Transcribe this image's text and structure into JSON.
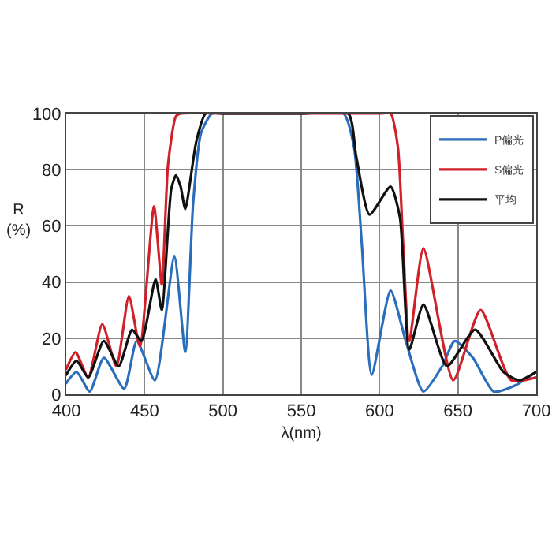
{
  "chart_data": {
    "type": "line",
    "xlabel": "λ(nm)",
    "ylabel": "R\n(%)",
    "xlim": [
      400,
      700
    ],
    "ylim": [
      0,
      100
    ],
    "xticks": [
      400,
      450,
      500,
      550,
      600,
      650,
      700
    ],
    "yticks": [
      0,
      20,
      40,
      60,
      80,
      100
    ],
    "grid": true,
    "legend": "top right",
    "marker": "none",
    "line_style": "solid",
    "series": [
      {
        "name": "P偏光",
        "color": "#2a6ebb",
        "x": [
          400,
          406.6,
          415,
          424,
          437,
          445,
          456.6,
          469,
          476,
          481,
          486,
          493,
          500,
          550,
          577,
          583.7,
          588.6,
          595,
          607,
          616.7,
          628,
          640,
          648,
          659.6,
          672.8,
          686,
          700
        ],
        "values": [
          4,
          8,
          1,
          13,
          2,
          19,
          5,
          49,
          15,
          68,
          93,
          100,
          100,
          100,
          100,
          88,
          54,
          7,
          37,
          19,
          1,
          10,
          19,
          13,
          1,
          3,
          8
        ]
      },
      {
        "name": "S偏光",
        "color": "#d0202a",
        "x": [
          400,
          406,
          414,
          423,
          432,
          440,
          447,
          456,
          461,
          465,
          470,
          473,
          500,
          550,
          600,
          607,
          611.7,
          615,
          619,
          628,
          647,
          664.5,
          684,
          700
        ],
        "values": [
          9,
          15,
          6,
          25,
          10,
          35,
          17,
          67,
          39,
          82,
          99,
          100,
          100,
          100,
          100,
          100,
          88,
          54,
          19,
          52,
          5,
          30,
          5,
          6
        ]
      },
      {
        "name": "平均",
        "color": "#111111",
        "x": [
          400,
          406.6,
          414,
          424,
          433.5,
          442,
          448,
          457,
          461,
          467,
          470,
          473,
          476,
          483,
          489,
          500,
          550,
          580,
          585,
          593.6,
          607,
          613,
          619,
          628,
          643,
          661,
          679,
          689,
          700
        ],
        "values": [
          7,
          12,
          6,
          19,
          10,
          23,
          19,
          41,
          30,
          73,
          78,
          74,
          66,
          90,
          100,
          100,
          100,
          100,
          85,
          64,
          74,
          63,
          16,
          32,
          10,
          23,
          8,
          5,
          8
        ]
      }
    ]
  }
}
